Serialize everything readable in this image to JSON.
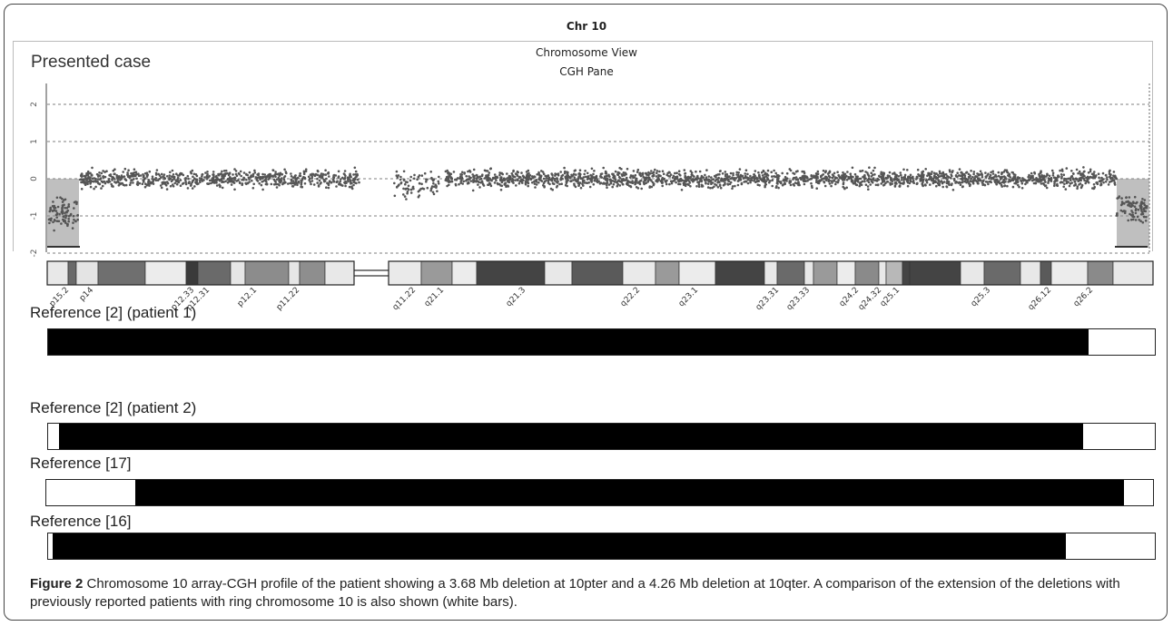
{
  "figure": {
    "chr_title": "Chr 10",
    "view_title": "Chromosome View",
    "pane_title": "CGH Pane",
    "case_label": "Presented case",
    "caption_label": "Figure 2",
    "caption_text": " Chromosome 10 array-CGH profile of the patient showing a 3.68 Mb deletion at 10pter and a 4.26 Mb deletion at 10qter. A comparison of the extension of the deletions with previously reported patients with ring chromosome 10 is also shown (white bars)."
  },
  "plot": {
    "y_ticks": [
      "2",
      "1",
      "0",
      "-1",
      "-2"
    ],
    "y_range": [
      -2,
      2
    ],
    "point_color": "#555555"
  },
  "ideogram": {
    "band_labels": [
      "p15.2",
      "p14",
      "p12.33",
      "p12.31",
      "p12.1",
      "p11.22",
      "q11.22",
      "q21.1",
      "q21.3",
      "q22.2",
      "q23.1",
      "q23.31",
      "q23.33",
      "q24.2",
      "q24.32",
      "q25.1",
      "q25.3",
      "q26.12",
      "q26.2"
    ]
  },
  "references": [
    {
      "label": "Reference [2] (patient 1)",
      "deleted_start": 0.0,
      "deleted_end": 0.94
    },
    {
      "label": "Reference [2] (patient 2)",
      "deleted_start": 0.01,
      "deleted_end": 0.935
    },
    {
      "label": "Reference [17]",
      "deleted_start": 0.08,
      "deleted_end": 0.974
    },
    {
      "label": "Reference [16]",
      "deleted_start": 0.004,
      "deleted_end": 0.92
    }
  ]
}
